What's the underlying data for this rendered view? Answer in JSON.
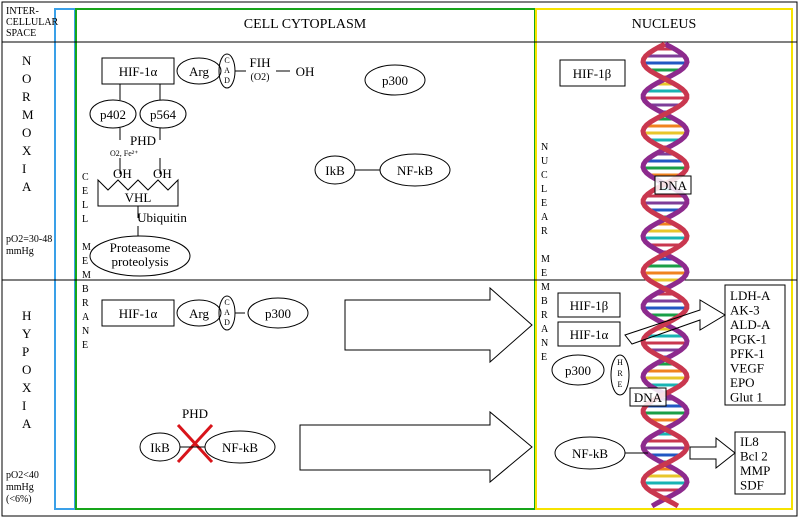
{
  "columns": {
    "leftHeader": [
      "INTER-",
      "CELLULAR",
      "SPACE"
    ],
    "center": "CELL  CYTOPLASM",
    "right": "NUCLEUS"
  },
  "borders": {
    "blue": "#3aa0e8",
    "green": "#17a51a",
    "yellow": "#f6e300",
    "black": "#000000",
    "red": "#d8141a"
  },
  "leftLabels": {
    "normoxia": [
      "N",
      "O",
      "R",
      "M",
      "O",
      "X",
      "I",
      "A"
    ],
    "normoxiaSub": [
      "pO2=30-48",
      "mmHg"
    ],
    "hypoxia": [
      "H",
      "Y",
      "P",
      "O",
      "X",
      "I",
      "A"
    ],
    "hypoxiaSub": [
      "pO2<40",
      "mmHg",
      "(<6%)"
    ],
    "cellMembrane": [
      "C",
      "E",
      "L",
      "L",
      "",
      "M",
      "E",
      "M",
      "B",
      "R",
      "A",
      "N",
      "E"
    ],
    "nuclearMembrane": [
      "N",
      "U",
      "C",
      "L",
      "E",
      "A",
      "R",
      "",
      "M",
      "E",
      "M",
      "B",
      "R",
      "A",
      "N",
      "E"
    ]
  },
  "nodes": {
    "hif1a": "HIF-1α",
    "arg": "Arg",
    "cad": [
      "C",
      "A",
      "D"
    ],
    "fih": "FIH",
    "fihSub": "(O2)",
    "oh": "OH",
    "p300": "p300",
    "p402": "p402",
    "p564": "p564",
    "phd": "PHD",
    "phdSub": "O2, Fe²⁺",
    "vhl": "VHL",
    "ubiq": "Ubiquitin",
    "prot": [
      "Proteasome",
      "proteolysis"
    ],
    "ikb": "IkB",
    "nfkb": "NF-kB",
    "hif1b": "HIF-1β",
    "dna": "DNA",
    "hre": [
      "H",
      "R",
      "E"
    ]
  },
  "geneList1": [
    "LDH-A",
    "AK-3",
    "ALD-A",
    "PGK-1",
    "PFK-1",
    "VEGF",
    "EPO",
    "Glut 1"
  ],
  "geneList2": [
    "IL8",
    "Bcl 2",
    "MMP",
    "SDF"
  ],
  "dnaColors": [
    "#c9374f",
    "#7e3d99",
    "#2157c3",
    "#1a9f47",
    "#f0831f",
    "#e8c62b",
    "#18b3b3"
  ]
}
